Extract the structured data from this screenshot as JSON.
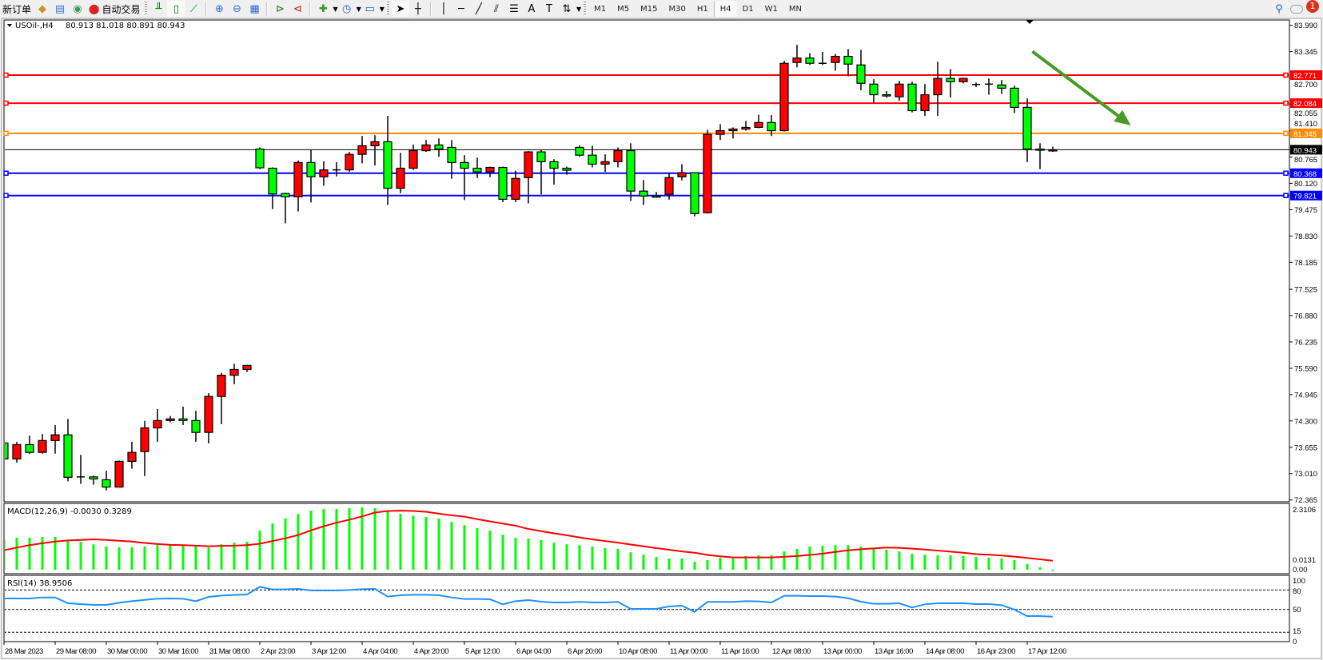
{
  "toolbar": {
    "new_order_label": "新订单",
    "auto_trading_label": "自动交易",
    "timeframes": [
      "M1",
      "M5",
      "M15",
      "M30",
      "H1",
      "H4",
      "D1",
      "W1",
      "MN"
    ],
    "active_timeframe": "H4",
    "notification_count": "1",
    "icons": [
      "expert-advisor-icon",
      "market-watch-icon",
      "signals-icon",
      "auto-trading-icon",
      "bar-chart-icon",
      "candlestick-icon",
      "line-chart-icon",
      "zoom-in-icon",
      "zoom-out-icon",
      "tile-windows-icon",
      "auto-scroll-icon",
      "chart-shift-icon",
      "indicators-icon",
      "periods-icon",
      "templates-icon",
      "cursor-icon",
      "crosshair-icon",
      "vertical-line-icon",
      "horizontal-line-icon",
      "trendline-icon",
      "equidistant-channel-icon",
      "fibonacci-icon",
      "text-icon",
      "text-label-icon",
      "arrows-icon",
      "search-icon",
      "chat-icon"
    ]
  },
  "chart_header": {
    "symbol": "USOil-,H4",
    "ohlc": "80.913 81.018 80.891 80.943"
  },
  "colors": {
    "bull": "#ff0000",
    "bear": "#00ff00",
    "resistance": "#ff0000",
    "pivot": "#ff8c00",
    "support": "#0000ff",
    "macd_hist": "#00ff00",
    "macd_signal": "#ff0000",
    "rsi": "#1e90ff",
    "arrow": "#4a9a2a"
  },
  "chart_data": [
    {
      "type": "candlestick",
      "symbol": "USOil-",
      "timeframe": "H4",
      "ylim": [
        72.365,
        83.99
      ],
      "y_ticks": [
        "83.990",
        "83.345",
        "82.700",
        "82.055",
        "81.410",
        "80.765",
        "80.120",
        "79.475",
        "78.830",
        "78.185",
        "77.525",
        "76.880",
        "76.235",
        "75.590",
        "74.945",
        "74.300",
        "73.655",
        "73.010",
        "72.365"
      ],
      "x_tick_labels": [
        "28 Mar 2023",
        "29 Mar 08:00",
        "30 Mar 00:00",
        "30 Mar 16:00",
        "31 Mar 08:00",
        "2 Apr 23:00",
        "3 Apr 12:00",
        "4 Apr 04:00",
        "4 Apr 20:00",
        "5 Apr 12:00",
        "6 Apr 04:00",
        "6 Apr 20:00",
        "10 Apr 08:00",
        "11 Apr 00:00",
        "11 Apr 16:00",
        "12 Apr 08:00",
        "13 Apr 00:00",
        "13 Apr 16:00",
        "14 Apr 08:00",
        "16 Apr 23:00",
        "17 Apr 12:00"
      ],
      "x_tick_every_bars": 4,
      "ohlc": [
        [
          73.76,
          73.9,
          73.0,
          73.37
        ],
        [
          73.37,
          73.79,
          73.28,
          73.72
        ],
        [
          73.72,
          73.94,
          73.49,
          73.53
        ],
        [
          73.53,
          73.98,
          73.5,
          73.82
        ],
        [
          73.82,
          74.2,
          73.5,
          73.96
        ],
        [
          73.96,
          74.35,
          72.82,
          72.92
        ],
        [
          72.93,
          73.47,
          72.76,
          72.93
        ],
        [
          72.93,
          72.96,
          72.74,
          72.88
        ],
        [
          72.86,
          73.08,
          72.6,
          72.68
        ],
        [
          72.68,
          73.33,
          72.68,
          73.31
        ],
        [
          73.31,
          73.79,
          73.13,
          73.53
        ],
        [
          73.55,
          74.3,
          72.95,
          74.13
        ],
        [
          74.13,
          74.59,
          73.79,
          74.31
        ],
        [
          74.31,
          74.42,
          74.27,
          74.35
        ],
        [
          74.35,
          74.65,
          74.2,
          74.31
        ],
        [
          74.31,
          74.55,
          73.79,
          74.02
        ],
        [
          74.02,
          74.98,
          73.75,
          74.9
        ],
        [
          74.9,
          75.48,
          74.22,
          75.42
        ],
        [
          75.42,
          75.7,
          75.2,
          75.56
        ],
        [
          75.56,
          75.67,
          75.5,
          75.66
        ],
        [
          80.96,
          81.0,
          80.47,
          80.5
        ],
        [
          80.49,
          80.51,
          79.49,
          79.86
        ],
        [
          79.87,
          79.89,
          79.14,
          79.79
        ],
        [
          79.79,
          80.68,
          79.43,
          80.63
        ],
        [
          80.63,
          80.94,
          79.65,
          80.28
        ],
        [
          80.28,
          80.66,
          80.06,
          80.45
        ],
        [
          80.45,
          80.64,
          80.29,
          80.45
        ],
        [
          80.45,
          80.89,
          80.4,
          80.83
        ],
        [
          80.83,
          81.28,
          80.61,
          81.04
        ],
        [
          81.04,
          81.3,
          80.56,
          81.14
        ],
        [
          81.14,
          81.77,
          79.59,
          80.0
        ],
        [
          80.0,
          80.87,
          79.88,
          80.49
        ],
        [
          80.49,
          81.07,
          80.45,
          80.92
        ],
        [
          80.92,
          81.18,
          80.89,
          81.06
        ],
        [
          81.06,
          81.22,
          80.77,
          80.96
        ],
        [
          81.0,
          81.18,
          80.23,
          80.63
        ],
        [
          80.63,
          80.81,
          79.71,
          80.49
        ],
        [
          80.49,
          80.75,
          80.25,
          80.4
        ],
        [
          80.4,
          80.53,
          80.27,
          80.51
        ],
        [
          80.51,
          80.53,
          79.66,
          79.73
        ],
        [
          79.73,
          80.43,
          79.66,
          80.24
        ],
        [
          80.26,
          80.91,
          79.63,
          80.89
        ],
        [
          80.89,
          80.94,
          79.85,
          80.65
        ],
        [
          80.65,
          80.71,
          80.09,
          80.49
        ],
        [
          80.49,
          80.53,
          80.33,
          80.44
        ],
        [
          81.0,
          81.05,
          80.77,
          80.81
        ],
        [
          80.81,
          81.04,
          80.51,
          80.59
        ],
        [
          80.59,
          80.83,
          80.4,
          80.65
        ],
        [
          80.65,
          81.0,
          80.51,
          80.92
        ],
        [
          80.92,
          81.1,
          79.69,
          79.93
        ],
        [
          79.93,
          80.2,
          79.59,
          79.81
        ],
        [
          79.81,
          79.91,
          79.77,
          79.8
        ],
        [
          79.85,
          80.38,
          79.72,
          80.26
        ],
        [
          80.28,
          80.59,
          80.19,
          80.38
        ],
        [
          80.38,
          80.38,
          79.31,
          79.38
        ],
        [
          79.4,
          81.43,
          79.38,
          81.32
        ],
        [
          81.32,
          81.57,
          81.18,
          81.41
        ],
        [
          81.41,
          81.49,
          81.22,
          81.45
        ],
        [
          81.45,
          81.65,
          81.41,
          81.49
        ],
        [
          81.49,
          81.8,
          81.47,
          81.61
        ],
        [
          81.61,
          81.79,
          81.28,
          81.41
        ],
        [
          81.41,
          83.12,
          81.39,
          83.06
        ],
        [
          83.08,
          83.51,
          82.96,
          83.19
        ],
        [
          83.19,
          83.31,
          83.02,
          83.06
        ],
        [
          83.06,
          83.34,
          83.02,
          83.06
        ],
        [
          83.08,
          83.29,
          82.88,
          83.23
        ],
        [
          83.23,
          83.41,
          82.74,
          83.04
        ],
        [
          83.02,
          83.39,
          82.4,
          82.57
        ],
        [
          82.55,
          82.67,
          82.1,
          82.29
        ],
        [
          82.29,
          82.38,
          82.22,
          82.26
        ],
        [
          82.24,
          82.63,
          82.14,
          82.55
        ],
        [
          82.55,
          82.61,
          81.86,
          81.9
        ],
        [
          81.9,
          82.55,
          81.77,
          82.29
        ],
        [
          82.29,
          83.1,
          81.77,
          82.69
        ],
        [
          82.69,
          82.92,
          82.22,
          82.61
        ],
        [
          82.61,
          82.69,
          82.57,
          82.69
        ],
        [
          82.54,
          82.59,
          82.48,
          82.54
        ],
        [
          82.55,
          82.69,
          82.29,
          82.55
        ],
        [
          82.53,
          82.65,
          82.31,
          82.45
        ],
        [
          82.45,
          82.51,
          81.84,
          81.98
        ],
        [
          81.98,
          82.2,
          80.64,
          80.96
        ],
        [
          80.96,
          81.1,
          80.47,
          80.93
        ],
        [
          80.913,
          81.018,
          80.891,
          80.943
        ]
      ],
      "current_price": {
        "value": 80.943,
        "label": "80.943"
      },
      "horizontal_lines": [
        {
          "value": 82.771,
          "label": "82.771",
          "color": "#ff0000"
        },
        {
          "value": 82.084,
          "label": "82.084",
          "color": "#ff0000"
        },
        {
          "value": 81.345,
          "label": "81.345",
          "color": "#ff8c00"
        },
        {
          "value": 80.368,
          "label": "80.368",
          "color": "#0000ff"
        },
        {
          "value": 79.821,
          "label": "79.821",
          "color": "#0000ff"
        }
      ],
      "arrow": {
        "from": {
          "bar": 80.4,
          "price": 83.35
        },
        "to": {
          "bar": 88.1,
          "price": 81.54
        },
        "color": "#4a9a2a"
      }
    },
    {
      "type": "bar+line",
      "title": "MACD(12,26,9) -0.0030 0.3289",
      "y_ticks": [
        "2.3106",
        "0.00",
        "0.0131"
      ],
      "ylim": [
        0,
        2.3106
      ],
      "histogram": [
        1.11,
        1.17,
        1.17,
        1.2,
        1.2,
        1.07,
        1.02,
        0.93,
        0.85,
        0.82,
        0.82,
        0.85,
        0.9,
        0.88,
        0.88,
        0.88,
        0.81,
        0.93,
        0.99,
        1.02,
        1.43,
        1.69,
        1.88,
        2.04,
        2.16,
        2.22,
        2.22,
        2.25,
        2.28,
        2.25,
        2.12,
        2.04,
        1.98,
        1.93,
        1.87,
        1.75,
        1.63,
        1.52,
        1.43,
        1.28,
        1.17,
        1.14,
        1.08,
        0.99,
        0.93,
        0.9,
        0.85,
        0.79,
        0.76,
        0.64,
        0.55,
        0.47,
        0.41,
        0.41,
        0.29,
        0.35,
        0.44,
        0.41,
        0.5,
        0.53,
        0.53,
        0.67,
        0.76,
        0.85,
        0.88,
        0.9,
        0.9,
        0.85,
        0.76,
        0.73,
        0.67,
        0.58,
        0.55,
        0.53,
        0.53,
        0.5,
        0.47,
        0.44,
        0.41,
        0.35,
        0.21,
        0.09,
        -0.003
      ],
      "signal": [
        0.71,
        0.81,
        0.9,
        0.97,
        1.03,
        1.07,
        1.09,
        1.11,
        1.09,
        1.06,
        1.03,
        0.98,
        0.94,
        0.91,
        0.9,
        0.88,
        0.86,
        0.87,
        0.88,
        0.9,
        0.95,
        1.05,
        1.15,
        1.27,
        1.44,
        1.59,
        1.72,
        1.83,
        1.95,
        2.09,
        2.15,
        2.16,
        2.15,
        2.12,
        2.05,
        1.99,
        1.94,
        1.85,
        1.77,
        1.69,
        1.61,
        1.49,
        1.41,
        1.33,
        1.26,
        1.18,
        1.11,
        1.05,
        0.99,
        0.92,
        0.86,
        0.79,
        0.73,
        0.67,
        0.62,
        0.54,
        0.49,
        0.45,
        0.45,
        0.45,
        0.45,
        0.47,
        0.5,
        0.54,
        0.59,
        0.65,
        0.71,
        0.75,
        0.78,
        0.81,
        0.8,
        0.77,
        0.74,
        0.7,
        0.66,
        0.62,
        0.57,
        0.55,
        0.52,
        0.48,
        0.43,
        0.38,
        0.3289
      ]
    },
    {
      "type": "line",
      "title": "RSI(14) 38.9506",
      "ylim": [
        0,
        100
      ],
      "levels": [
        80,
        50,
        15
      ],
      "y_ticks": [
        "100",
        "80",
        "50",
        "15",
        "0"
      ],
      "values": [
        66.9,
        66.9,
        66.9,
        68.5,
        68.5,
        59.5,
        58.3,
        57.0,
        57.0,
        60.3,
        62.8,
        64.8,
        66.5,
        66.9,
        66.5,
        62.8,
        69.3,
        71.4,
        72.2,
        73.0,
        84.9,
        80.8,
        80.8,
        81.6,
        79.2,
        79.2,
        79.2,
        80.0,
        81.2,
        81.6,
        69.8,
        71.8,
        72.6,
        72.6,
        71.8,
        68.5,
        66.1,
        66.1,
        65.7,
        57.9,
        62.8,
        64.4,
        62.0,
        60.7,
        60.7,
        61.6,
        60.7,
        60.7,
        61.6,
        50.9,
        50.9,
        50.9,
        54.6,
        55.8,
        46.4,
        61.6,
        61.6,
        61.6,
        62.8,
        62.4,
        60.7,
        71.0,
        71.0,
        70.6,
        70.6,
        69.8,
        67.3,
        62.0,
        58.7,
        58.7,
        59.5,
        52.9,
        57.9,
        59.5,
        59.5,
        59.5,
        58.3,
        58.3,
        56.6,
        49.7,
        39.8,
        39.8,
        38.9506
      ]
    }
  ]
}
